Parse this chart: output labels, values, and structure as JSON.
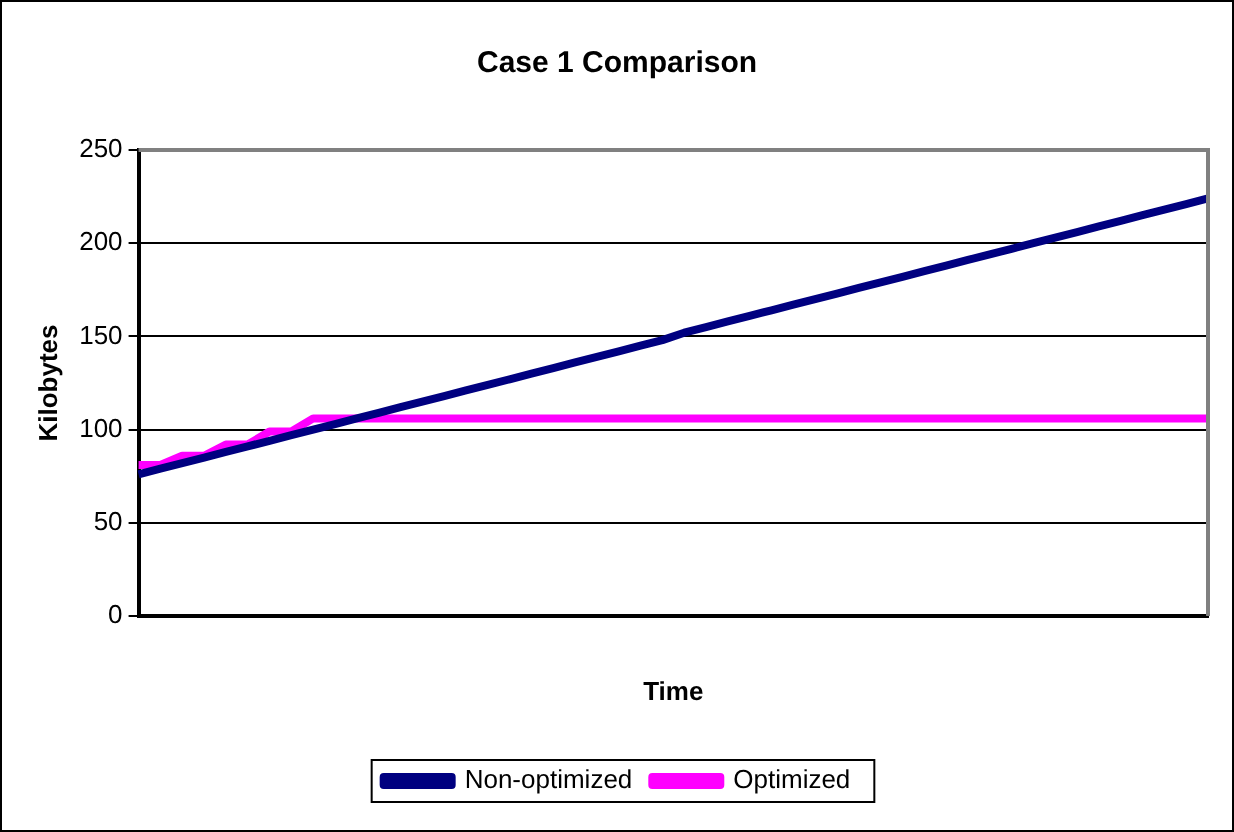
{
  "chart_data": {
    "type": "line",
    "title": "Case 1 Comparison",
    "xlabel": "Time",
    "ylabel": "Kilobytes",
    "categories": [
      null,
      null,
      null,
      null,
      null,
      null,
      null,
      null,
      null,
      null,
      null,
      null,
      null,
      null,
      null,
      null,
      null,
      null,
      null,
      null,
      null,
      null,
      null,
      null,
      null,
      null,
      null,
      null,
      null,
      null,
      null,
      null,
      null,
      null,
      null,
      null,
      null,
      null,
      null,
      null,
      null,
      null,
      null,
      null,
      null,
      null,
      null,
      null,
      null,
      null
    ],
    "series": [
      {
        "name": "Non-optimized",
        "color": "#000080",
        "values": [
          76,
          79,
          82,
          85,
          88,
          91,
          94,
          97,
          100,
          103,
          106,
          109,
          112,
          115,
          118,
          121,
          124,
          127,
          130,
          133,
          136,
          139,
          142,
          145,
          148,
          152,
          155,
          158,
          161,
          164,
          167,
          170,
          173,
          176,
          179,
          182,
          185,
          188,
          191,
          194,
          197,
          200,
          203,
          206,
          209,
          212,
          215,
          218,
          221,
          224
        ]
      },
      {
        "name": "Optimized",
        "color": "#ff00ff",
        "values": [
          81,
          81,
          86,
          86,
          92,
          92,
          99,
          99,
          106,
          106,
          106,
          106,
          106,
          106,
          106,
          106,
          106,
          106,
          106,
          106,
          106,
          106,
          106,
          106,
          106,
          106,
          106,
          106,
          106,
          106,
          106,
          106,
          106,
          106,
          106,
          106,
          106,
          106,
          106,
          106,
          106,
          106,
          106,
          106,
          106,
          106,
          106,
          106,
          106,
          106
        ]
      }
    ],
    "ylim": [
      0,
      250
    ],
    "yticks": [
      0,
      50,
      100,
      150,
      200,
      250
    ],
    "grid": "y",
    "legend": "bottom",
    "marker": "none",
    "line_style": "solid"
  }
}
